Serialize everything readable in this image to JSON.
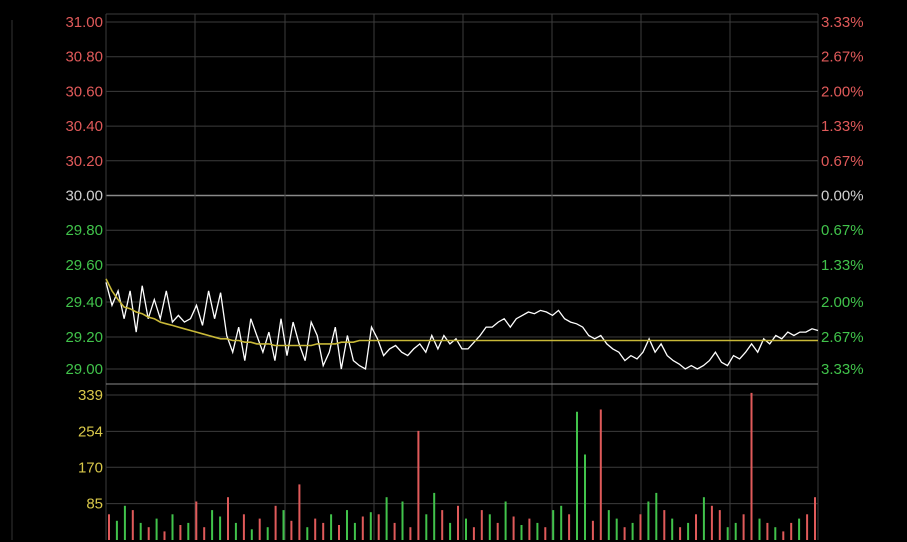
{
  "colors": {
    "background": "#000000",
    "grid": "#3c3c3c",
    "grid_strong": "#8a8a8a",
    "up": "#e05a5a",
    "down": "#41c34b",
    "neutral": "#d0d0d0",
    "volume_axis": "#d9c84a",
    "price_line": "#ffffff",
    "avg_line": "#c8b838"
  },
  "chart_data": [
    {
      "type": "line",
      "name": "intraday-price",
      "y_ticks_left": [
        "31.00",
        "30.80",
        "30.60",
        "30.40",
        "30.20",
        "30.00",
        "29.80",
        "29.60",
        "29.40",
        "29.20",
        "29.00"
      ],
      "y_ticks_right": [
        "3.33%",
        "2.67%",
        "2.00%",
        "1.33%",
        "0.67%",
        "0.00%",
        "0.67%",
        "1.33%",
        "2.00%",
        "2.67%",
        "3.33%"
      ],
      "ylim": [
        29.0,
        31.0
      ],
      "reference_price": 30.0,
      "x_count": 119,
      "series": [
        {
          "key": "price",
          "values": [
            29.5,
            29.38,
            29.45,
            29.3,
            29.45,
            29.22,
            29.48,
            29.3,
            29.4,
            29.3,
            29.45,
            29.28,
            29.32,
            29.28,
            29.3,
            29.38,
            29.26,
            29.45,
            29.3,
            29.44,
            29.2,
            29.1,
            29.25,
            29.05,
            29.3,
            29.2,
            29.1,
            29.22,
            29.05,
            29.3,
            29.08,
            29.28,
            29.15,
            29.05,
            29.28,
            29.2,
            29.02,
            29.1,
            29.25,
            29.0,
            29.2,
            29.05,
            29.02,
            29.0,
            29.25,
            29.18,
            29.08,
            29.12,
            29.14,
            29.1,
            29.08,
            29.12,
            29.15,
            29.1,
            29.2,
            29.12,
            29.2,
            29.15,
            29.18,
            29.12,
            29.12,
            29.16,
            29.2,
            29.25,
            29.25,
            29.28,
            29.3,
            29.25,
            29.3,
            29.32,
            29.34,
            29.33,
            29.35,
            29.34,
            29.32,
            29.35,
            29.3,
            29.28,
            29.27,
            29.25,
            29.2,
            29.18,
            29.2,
            29.15,
            29.12,
            29.1,
            29.05,
            29.08,
            29.06,
            29.1,
            29.18,
            29.1,
            29.15,
            29.08,
            29.05,
            29.03,
            29.0,
            29.02,
            29.0,
            29.02,
            29.05,
            29.1,
            29.04,
            29.02,
            29.08,
            29.06,
            29.1,
            29.15,
            29.1,
            29.18,
            29.15,
            29.2,
            29.18,
            29.22,
            29.2,
            29.22,
            29.22,
            29.24,
            29.23
          ]
        },
        {
          "key": "average",
          "values": [
            29.52,
            29.45,
            29.4,
            29.37,
            29.36,
            29.34,
            29.33,
            29.31,
            29.3,
            29.28,
            29.27,
            29.26,
            29.25,
            29.24,
            29.23,
            29.22,
            29.21,
            29.2,
            29.19,
            29.18,
            29.18,
            29.17,
            29.17,
            29.16,
            29.16,
            29.15,
            29.15,
            29.15,
            29.14,
            29.14,
            29.14,
            29.14,
            29.14,
            29.14,
            29.14,
            29.15,
            29.15,
            29.15,
            29.15,
            29.16,
            29.16,
            29.16,
            29.17,
            29.17,
            29.17,
            29.17,
            29.17,
            29.17,
            29.17,
            29.17,
            29.17,
            29.17,
            29.17,
            29.17,
            29.17,
            29.17,
            29.17,
            29.17,
            29.17,
            29.17,
            29.17,
            29.17,
            29.17,
            29.17,
            29.17,
            29.17,
            29.17,
            29.17,
            29.17,
            29.17,
            29.17,
            29.17,
            29.17,
            29.17,
            29.17,
            29.17,
            29.17,
            29.17,
            29.17,
            29.17,
            29.17,
            29.17,
            29.17,
            29.17,
            29.17,
            29.17,
            29.17,
            29.17,
            29.17,
            29.17,
            29.17,
            29.17,
            29.17,
            29.17,
            29.17,
            29.17,
            29.17,
            29.17,
            29.17,
            29.17,
            29.17,
            29.17,
            29.17,
            29.17,
            29.17,
            29.17,
            29.17,
            29.17,
            29.17,
            29.17,
            29.17,
            29.17,
            29.17,
            29.17,
            29.17,
            29.17,
            29.17,
            29.17,
            29.17
          ]
        }
      ]
    },
    {
      "type": "bar",
      "name": "intraday-volume",
      "y_ticks": [
        "339",
        "254",
        "170",
        "85"
      ],
      "ylim": [
        0,
        339
      ],
      "values": [
        60,
        45,
        80,
        70,
        40,
        30,
        50,
        20,
        60,
        35,
        40,
        90,
        30,
        70,
        55,
        100,
        40,
        60,
        25,
        50,
        30,
        80,
        70,
        45,
        130,
        30,
        50,
        40,
        60,
        35,
        70,
        40,
        55,
        65,
        60,
        100,
        40,
        90,
        30,
        255,
        60,
        110,
        70,
        40,
        80,
        50,
        30,
        70,
        60,
        40,
        90,
        55,
        35,
        50,
        40,
        30,
        70,
        80,
        60,
        300,
        200,
        45,
        305,
        70,
        50,
        30,
        40,
        60,
        90,
        110,
        70,
        50,
        30,
        40,
        60,
        100,
        80,
        70,
        30,
        40,
        60,
        344,
        50,
        40,
        30,
        20,
        40,
        50,
        60,
        100
      ],
      "directions": [
        "u",
        "d",
        "d",
        "u",
        "d",
        "u",
        "d",
        "u",
        "d",
        "u",
        "d",
        "u",
        "u",
        "d",
        "d",
        "u",
        "d",
        "u",
        "d",
        "u",
        "d",
        "u",
        "d",
        "u",
        "u",
        "d",
        "u",
        "u",
        "d",
        "u",
        "d",
        "d",
        "u",
        "d",
        "u",
        "d",
        "u",
        "d",
        "u",
        "u",
        "d",
        "d",
        "u",
        "d",
        "u",
        "d",
        "u",
        "u",
        "d",
        "u",
        "d",
        "u",
        "d",
        "u",
        "d",
        "u",
        "d",
        "d",
        "u",
        "d",
        "d",
        "u",
        "u",
        "d",
        "d",
        "u",
        "d",
        "u",
        "d",
        "d",
        "u",
        "d",
        "u",
        "d",
        "u",
        "d",
        "u",
        "u",
        "d",
        "d",
        "u",
        "u",
        "d",
        "u",
        "d",
        "u",
        "u",
        "d",
        "u",
        "u"
      ]
    }
  ]
}
